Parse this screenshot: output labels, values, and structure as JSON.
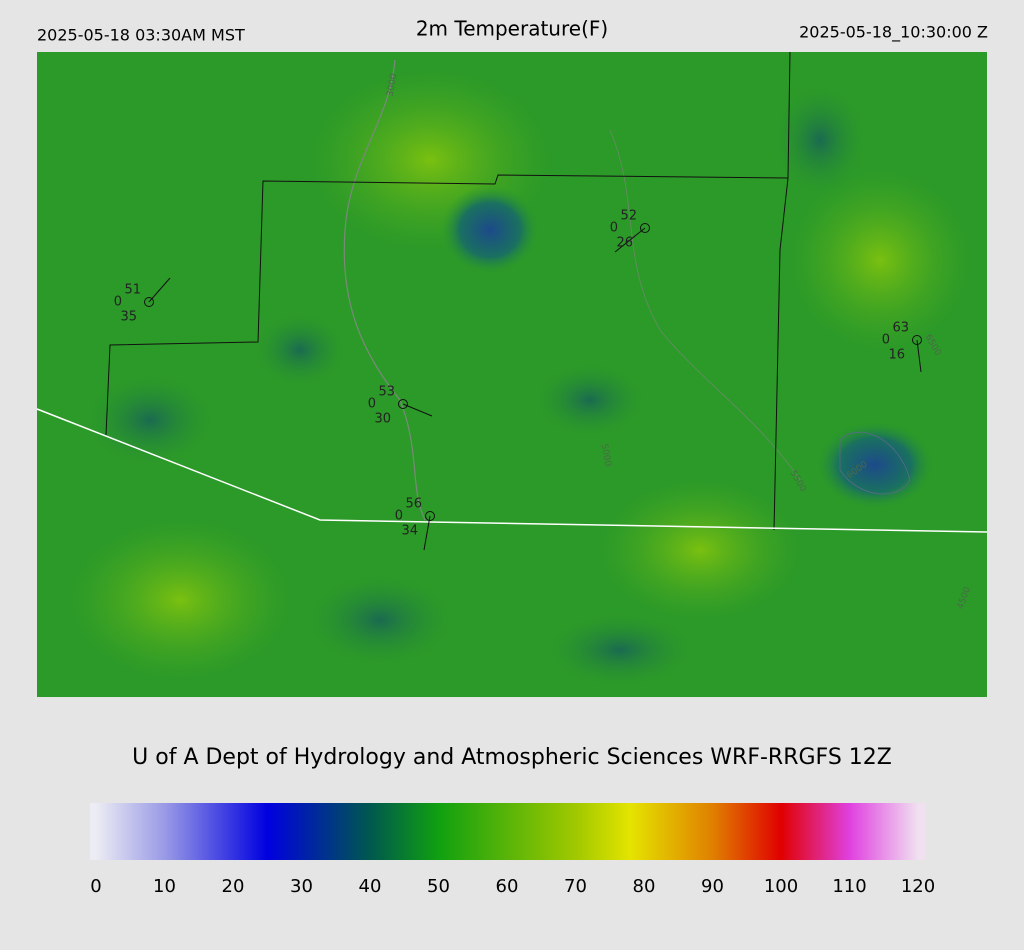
{
  "header": {
    "local_time": "2025-05-18 03:30AM MST",
    "title": "2m Temperature(F)",
    "utc_time": "2025-05-18_10:30:00 Z"
  },
  "map": {
    "stations": [
      {
        "temp": 51,
        "code": 0,
        "dewpoint": 35
      },
      {
        "temp": 52,
        "code": 0,
        "dewpoint": 26
      },
      {
        "temp": 53,
        "code": 0,
        "dewpoint": 30
      },
      {
        "temp": 56,
        "code": 0,
        "dewpoint": 34
      },
      {
        "temp": 63,
        "code": 0,
        "dewpoint": 16
      }
    ],
    "contour_labels": [
      "3000",
      "5500",
      "6000",
      "6500",
      "4500",
      "5000"
    ]
  },
  "credit": "U of A Dept of Hydrology and Atmospheric Sciences WRF-RRGFS 12Z",
  "colorbar": {
    "lim": [
      0,
      120
    ],
    "ticks": [
      0,
      10,
      20,
      30,
      40,
      50,
      60,
      70,
      80,
      90,
      100,
      110,
      120
    ],
    "stops": [
      {
        "value": 0,
        "color": "#ececf4"
      },
      {
        "value": 10,
        "color": "#9a9ae6"
      },
      {
        "value": 25,
        "color": "#0000e0"
      },
      {
        "value": 40,
        "color": "#00584e"
      },
      {
        "value": 50,
        "color": "#10a010"
      },
      {
        "value": 70,
        "color": "#a0c800"
      },
      {
        "value": 78,
        "color": "#e4e400"
      },
      {
        "value": 90,
        "color": "#e08000"
      },
      {
        "value": 100,
        "color": "#e00000"
      },
      {
        "value": 110,
        "color": "#e040e0"
      },
      {
        "value": 120,
        "color": "#f0e0f0"
      }
    ]
  }
}
